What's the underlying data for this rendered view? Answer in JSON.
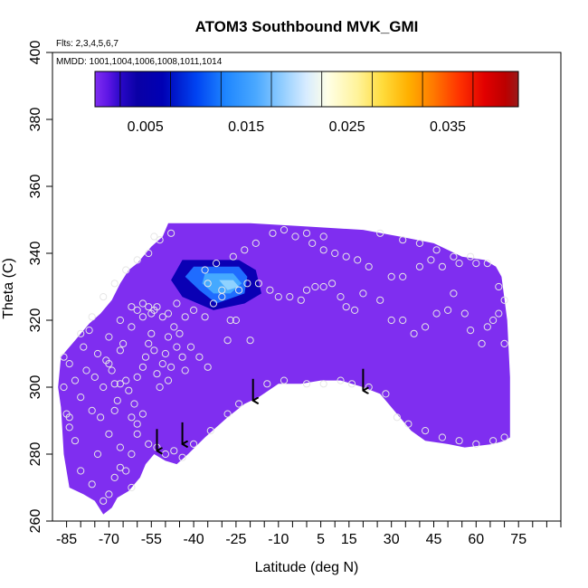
{
  "chart_data": {
    "type": "heatmap",
    "title": "ATOM3 Southbound MVK_GMI",
    "subtitle_flights": "Flts: 2,3,4,5,6,7",
    "subtitle_dates": "MMDD: 1001,1004,1006,1008,1011,1014",
    "xlabel": "Latitude (deg N)",
    "ylabel": "Theta (C)",
    "xlim": [
      -90,
      90
    ],
    "ylim": [
      260,
      400
    ],
    "x_ticks": [
      -85,
      -70,
      -55,
      -40,
      -25,
      -10,
      5,
      15,
      30,
      45,
      60,
      75
    ],
    "y_ticks": [
      260,
      280,
      300,
      320,
      340,
      360,
      380,
      400
    ],
    "colorbar": {
      "range": [
        0,
        0.042
      ],
      "tick_values": [
        0.005,
        0.015,
        0.025,
        0.035
      ],
      "tick_labels": [
        "0.005",
        "0.015",
        "0.025",
        "0.035"
      ]
    },
    "colors": {
      "field_background": "#7f2ef0",
      "marker": "#e6e6e6",
      "arrow": "#000000"
    },
    "field_top_theta": 349,
    "field_boundary_bottom": [
      [
        -87,
        294
      ],
      [
        -86,
        280
      ],
      [
        -84,
        270
      ],
      [
        -79,
        268
      ],
      [
        -75,
        266
      ],
      [
        -72,
        262
      ],
      [
        -69,
        264
      ],
      [
        -67,
        267
      ],
      [
        -63,
        269
      ],
      [
        -59,
        273
      ],
      [
        -57,
        277
      ],
      [
        -54,
        280
      ],
      [
        -50,
        278
      ],
      [
        -46,
        277
      ],
      [
        -42,
        280
      ],
      [
        -36,
        285
      ],
      [
        -28,
        291
      ],
      [
        -22,
        295
      ],
      [
        -17,
        297
      ],
      [
        -10,
        301
      ],
      [
        -2,
        301
      ],
      [
        5,
        302
      ],
      [
        12,
        302
      ],
      [
        20,
        300
      ],
      [
        26,
        298
      ],
      [
        32,
        292
      ],
      [
        37,
        287
      ],
      [
        42,
        284
      ],
      [
        50,
        283
      ],
      [
        56,
        282
      ],
      [
        66,
        283
      ],
      [
        70,
        284
      ],
      [
        72,
        285
      ]
    ],
    "field_boundary_top": [
      [
        72,
        303
      ],
      [
        71,
        320
      ],
      [
        69,
        333
      ],
      [
        67,
        336
      ],
      [
        63,
        338
      ],
      [
        55,
        339
      ],
      [
        45,
        343
      ],
      [
        33,
        345
      ],
      [
        20,
        347
      ],
      [
        0,
        348
      ],
      [
        -20,
        349
      ],
      [
        -44,
        349
      ],
      [
        -49,
        349
      ],
      [
        -51,
        345
      ],
      [
        -55,
        342
      ],
      [
        -58,
        339
      ],
      [
        -60,
        337
      ],
      [
        -63,
        335
      ],
      [
        -66,
        331
      ],
      [
        -69,
        326
      ],
      [
        -73,
        322
      ],
      [
        -77,
        319
      ],
      [
        -82,
        314
      ],
      [
        -85,
        311
      ],
      [
        -87,
        309
      ],
      [
        -88,
        300
      ]
    ],
    "max_region": {
      "outer": [
        [
          -44,
          338
        ],
        [
          -24,
          338
        ],
        [
          -18,
          335
        ],
        [
          -16,
          328
        ],
        [
          -22,
          325
        ],
        [
          -33,
          323
        ],
        [
          -44,
          327
        ],
        [
          -48,
          332
        ]
      ],
      "mid": [
        [
          -40,
          336
        ],
        [
          -24,
          336
        ],
        [
          -21,
          333
        ],
        [
          -22,
          328
        ],
        [
          -32,
          325
        ],
        [
          -38,
          329
        ],
        [
          -43,
          333
        ]
      ],
      "inner": [
        [
          -36,
          334
        ],
        [
          -26,
          334
        ],
        [
          -23,
          331
        ],
        [
          -27,
          328
        ],
        [
          -33,
          328
        ],
        [
          -37,
          331
        ]
      ],
      "core": [
        [
          -31,
          332
        ],
        [
          -26,
          332
        ],
        [
          -24,
          330
        ],
        [
          -28,
          329
        ]
      ]
    },
    "arrows": [
      {
        "lat": -53,
        "theta": 281
      },
      {
        "lat": -44,
        "theta": 283
      },
      {
        "lat": -19,
        "theta": 296
      },
      {
        "lat": 20,
        "theta": 299
      }
    ],
    "obs_points": [
      [
        -86,
        309
      ],
      [
        -85,
        292
      ],
      [
        -84,
        291
      ],
      [
        -82,
        284
      ],
      [
        -79,
        312
      ],
      [
        -77,
        317
      ],
      [
        -76,
        293
      ],
      [
        -75,
        303
      ],
      [
        -73,
        291
      ],
      [
        -72,
        300
      ],
      [
        -71,
        308
      ],
      [
        -70,
        307
      ],
      [
        -69,
        305
      ],
      [
        -68,
        301
      ],
      [
        -68,
        293
      ],
      [
        -67,
        296
      ],
      [
        -66,
        311
      ],
      [
        -66,
        301
      ],
      [
        -65,
        313
      ],
      [
        -64,
        302
      ],
      [
        -63,
        299
      ],
      [
        -62,
        291
      ],
      [
        -61,
        295
      ],
      [
        -60,
        289
      ],
      [
        -60,
        303
      ],
      [
        -58,
        306
      ],
      [
        -57,
        309
      ],
      [
        -56,
        313
      ],
      [
        -55,
        316
      ],
      [
        -54,
        311
      ],
      [
        -53,
        304
      ],
      [
        -52,
        300
      ],
      [
        -51,
        307
      ],
      [
        -50,
        310
      ],
      [
        -49,
        302
      ],
      [
        -48,
        306
      ],
      [
        -46,
        312
      ],
      [
        -45,
        316
      ],
      [
        -44,
        309
      ],
      [
        -43,
        305
      ],
      [
        -41,
        312
      ],
      [
        -38,
        309
      ],
      [
        -35,
        306
      ],
      [
        -62,
        318
      ],
      [
        -58,
        321
      ],
      [
        -55,
        322
      ],
      [
        -53,
        324
      ],
      [
        -51,
        321
      ],
      [
        -49,
        315
      ],
      [
        -47,
        318
      ],
      [
        -66,
        320
      ],
      [
        -62,
        324
      ],
      [
        -60,
        323
      ],
      [
        -58,
        325
      ],
      [
        -56,
        324
      ],
      [
        -54,
        323
      ],
      [
        -49,
        322
      ],
      [
        -46,
        325
      ],
      [
        -43,
        321
      ],
      [
        -40,
        323
      ],
      [
        -36,
        321
      ],
      [
        -33,
        325
      ],
      [
        -30,
        327
      ],
      [
        -27,
        320
      ],
      [
        -25,
        320
      ],
      [
        -28,
        314
      ],
      [
        -20,
        314
      ],
      [
        -17,
        331
      ],
      [
        -13,
        329
      ],
      [
        -10,
        327
      ],
      [
        -6,
        327
      ],
      [
        -2,
        326
      ],
      [
        0,
        329
      ],
      [
        3,
        330
      ],
      [
        6,
        330
      ],
      [
        9,
        331
      ],
      [
        12,
        327
      ],
      [
        14,
        324
      ],
      [
        17,
        323
      ],
      [
        20,
        328
      ],
      [
        26,
        326
      ],
      [
        30,
        320
      ],
      [
        34,
        320
      ],
      [
        38,
        316
      ],
      [
        42,
        318
      ],
      [
        46,
        322
      ],
      [
        50,
        323
      ],
      [
        52,
        328
      ],
      [
        56,
        322
      ],
      [
        58,
        317
      ],
      [
        62,
        313
      ],
      [
        64,
        318
      ],
      [
        66,
        320
      ],
      [
        68,
        322
      ],
      [
        70,
        313
      ],
      [
        22,
        336
      ],
      [
        18,
        338
      ],
      [
        14,
        339
      ],
      [
        10,
        340
      ],
      [
        6,
        341
      ],
      [
        2,
        343
      ],
      [
        -4,
        345
      ],
      [
        -8,
        347
      ],
      [
        -12,
        346
      ],
      [
        -18,
        343
      ],
      [
        -22,
        341
      ],
      [
        -26,
        339
      ],
      [
        -32,
        337
      ],
      [
        -36,
        335
      ],
      [
        30,
        333
      ],
      [
        34,
        333
      ],
      [
        40,
        336
      ],
      [
        44,
        338
      ],
      [
        48,
        336
      ],
      [
        54,
        337
      ],
      [
        60,
        337
      ],
      [
        -14,
        301
      ],
      [
        -8,
        302
      ],
      [
        0,
        301
      ],
      [
        6,
        301
      ],
      [
        12,
        302
      ],
      [
        16,
        301
      ],
      [
        22,
        300
      ],
      [
        28,
        298
      ],
      [
        32,
        291
      ],
      [
        36,
        289
      ],
      [
        42,
        287
      ],
      [
        48,
        285
      ],
      [
        54,
        284
      ],
      [
        60,
        283
      ],
      [
        66,
        284
      ],
      [
        70,
        285
      ],
      [
        -56,
        283
      ],
      [
        -53,
        282
      ],
      [
        -50,
        280
      ],
      [
        -47,
        281
      ],
      [
        -44,
        279
      ],
      [
        -40,
        283
      ],
      [
        -34,
        287
      ],
      [
        -28,
        292
      ],
      [
        -24,
        295
      ],
      [
        -70,
        268
      ],
      [
        -72,
        266
      ],
      [
        -68,
        273
      ],
      [
        -64,
        275
      ],
      [
        -62,
        270
      ],
      [
        -66,
        276
      ],
      [
        -76,
        271
      ],
      [
        -80,
        275
      ],
      [
        -74,
        280
      ],
      [
        -84,
        288
      ],
      [
        -86,
        300
      ],
      [
        -84,
        307
      ],
      [
        -80,
        316
      ],
      [
        -76,
        321
      ],
      [
        -72,
        327
      ],
      [
        -68,
        331
      ],
      [
        -64,
        335
      ],
      [
        -60,
        338
      ],
      [
        -56,
        340
      ],
      [
        -52,
        344
      ],
      [
        -48,
        346
      ],
      [
        -54,
        345
      ],
      [
        -70,
        315
      ],
      [
        -74,
        310
      ],
      [
        -78,
        305
      ],
      [
        -80,
        297
      ],
      [
        -82,
        302
      ],
      [
        0,
        346
      ],
      [
        6,
        345
      ],
      [
        26,
        346
      ],
      [
        34,
        344
      ],
      [
        40,
        343
      ],
      [
        46,
        341
      ],
      [
        52,
        339
      ],
      [
        58,
        339
      ],
      [
        64,
        337
      ],
      [
        68,
        330
      ],
      [
        70,
        326
      ],
      [
        -30,
        329
      ],
      [
        -35,
        331
      ],
      [
        -24,
        329
      ],
      [
        -21,
        331
      ],
      [
        -60,
        286
      ],
      [
        -58,
        292
      ],
      [
        -62,
        280
      ],
      [
        -66,
        282
      ],
      [
        -70,
        286
      ]
    ]
  }
}
